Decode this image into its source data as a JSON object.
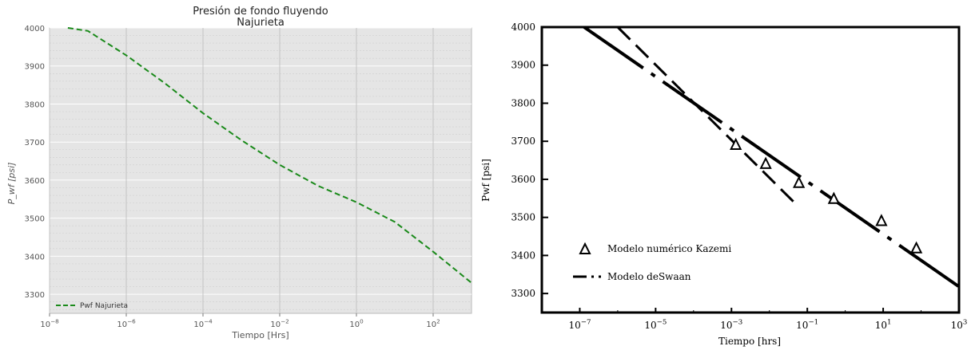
{
  "chart_data": [
    {
      "type": "line",
      "title": "Presión de fondo fluyendo",
      "subtitle": "Najurieta",
      "xlabel": "Tiempo [Hrs]",
      "ylabel": "P_wf [psi]",
      "xscale": "log",
      "xlim": [
        1e-08,
        1000
      ],
      "ylim": [
        3250,
        4000
      ],
      "grid": true,
      "legend_placement": "lower-left",
      "x_ticks": [
        1e-08,
        1e-06,
        0.0001,
        0.01,
        1,
        100
      ],
      "x_tick_labels": [
        {
          "base": "10",
          "exp": "−8"
        },
        {
          "base": "10",
          "exp": "−6"
        },
        {
          "base": "10",
          "exp": "−4"
        },
        {
          "base": "10",
          "exp": "−2"
        },
        {
          "base": "10",
          "exp": "0"
        },
        {
          "base": "10",
          "exp": "2"
        }
      ],
      "y_ticks": [
        3300,
        3400,
        3500,
        3600,
        3700,
        3800,
        3900,
        4000
      ],
      "y_tick_labels": [
        "3300",
        "3400",
        "3500",
        "3600",
        "3700",
        "3800",
        "3900",
        "4000"
      ],
      "series": [
        {
          "name": "Pwf Najurieta",
          "color": "#1a8a1a",
          "style": "dashed",
          "x": [
            3e-08,
            1e-07,
            1e-06,
            1e-05,
            0.0001,
            0.001,
            0.01,
            0.1,
            1,
            10,
            100,
            1000
          ],
          "y": [
            4000,
            3992,
            3928,
            3855,
            3776,
            3705,
            3640,
            3585,
            3542,
            3490,
            3412,
            3330
          ]
        }
      ]
    },
    {
      "type": "line",
      "xlabel": "Tiempo [hrs]",
      "ylabel": "Pwf [psi]",
      "xscale": "log",
      "xlim": [
        1e-08,
        1000
      ],
      "ylim": [
        3250,
        4000
      ],
      "grid": false,
      "legend_placement": "lower-left",
      "x_ticks": [
        1e-07,
        1e-05,
        0.001,
        0.1,
        10,
        1000
      ],
      "x_tick_labels": [
        {
          "base": "10",
          "exp": "−7"
        },
        {
          "base": "10",
          "exp": "−5"
        },
        {
          "base": "10",
          "exp": "−3"
        },
        {
          "base": "10",
          "exp": "−1"
        },
        {
          "base": "10",
          "exp": "1"
        },
        {
          "base": "10",
          "exp": "3"
        }
      ],
      "y_ticks": [
        3300,
        3400,
        3500,
        3600,
        3700,
        3800,
        3900,
        4000
      ],
      "y_tick_labels": [
        "3300",
        "3400",
        "3500",
        "3600",
        "3700",
        "3800",
        "3900",
        "4000"
      ],
      "series": [
        {
          "name": "Modelo numérico Kazemi",
          "marker": "triangle",
          "color": "#000000",
          "x": [
            0.0013,
            0.008,
            0.06,
            0.5,
            9,
            75
          ],
          "y": [
            3690,
            3640,
            3590,
            3548,
            3490,
            3418
          ]
        },
        {
          "name": "Modelo deSwaan",
          "color": "#000000",
          "style": "dash-dot",
          "lines": [
            {
              "x": [
                1.3e-07,
                1000
              ],
              "y": [
                4000,
                3318
              ]
            },
            {
              "x": [
                1e-06,
                0.05
              ],
              "y": [
                4000,
                3535
              ]
            }
          ]
        }
      ]
    }
  ]
}
